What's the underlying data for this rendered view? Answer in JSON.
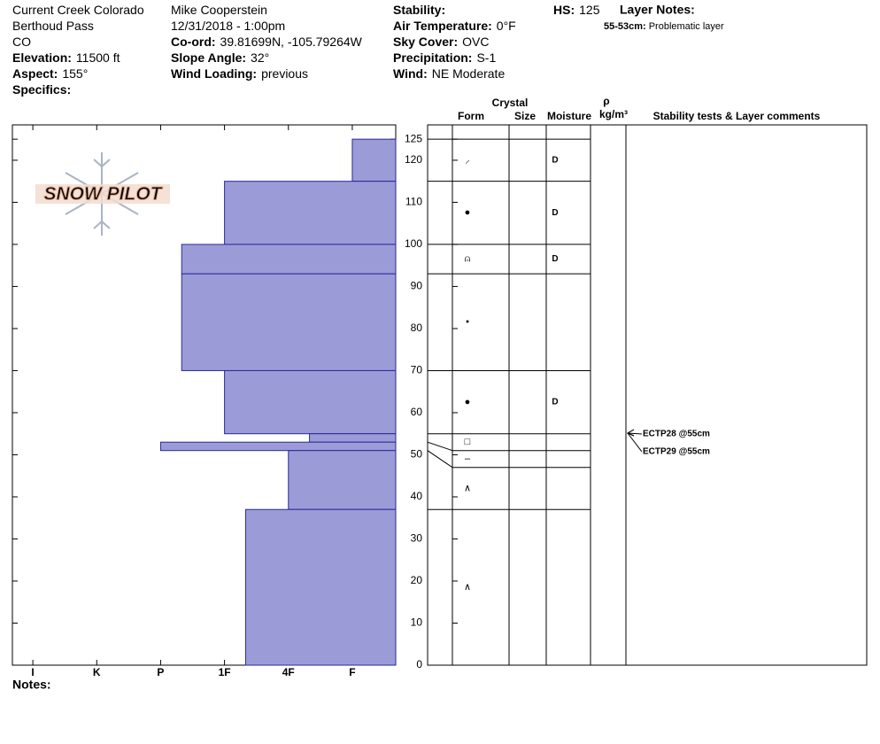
{
  "header": {
    "col1": [
      {
        "value": "Current Creek Colorado"
      },
      {
        "value": "Berthoud Pass"
      },
      {
        "value": "CO"
      },
      {
        "label": "Elevation:",
        "value": "11500 ft"
      },
      {
        "label": "Aspect:",
        "value": "155°"
      },
      {
        "label": "Specifics:"
      }
    ],
    "col2": [
      {
        "value": "Mike Cooperstein"
      },
      {
        "value": "12/31/2018 - 1:00pm"
      },
      {
        "label": "Co-ord:",
        "value": "39.81699N, -105.79264W"
      },
      {
        "label": "Slope Angle:",
        "value": "32°"
      },
      {
        "label": "Wind Loading:",
        "value": "previous"
      }
    ],
    "col3": [
      {
        "label": "Stability:"
      },
      {
        "label": "Air Temperature:",
        "value": "0°F"
      },
      {
        "label": "Sky Cover:",
        "value": "OVC"
      },
      {
        "label": "Precipitation:",
        "value": "S-1"
      },
      {
        "label": "Wind:",
        "value": "NE Moderate"
      }
    ],
    "hs": {
      "label": "HS:",
      "value": "125"
    },
    "layer_notes": {
      "title": "Layer Notes:",
      "items": [
        {
          "label": "55-53cm:",
          "value": "Problematic layer"
        }
      ]
    }
  },
  "logo": "SNOW PILOT",
  "columns": {
    "crystal": "Crystal",
    "form": "Form",
    "size": "Size",
    "moisture": "Moisture",
    "density_symbol": "ρ",
    "density_unit": "kg/m³",
    "comments": "Stability tests & Layer comments"
  },
  "notes": "Notes:",
  "chart_data": {
    "type": "hardness-profile",
    "color": "#9b9bd7",
    "edge_color": "#2a2a9a",
    "ylim": [
      0,
      128.4
    ],
    "yticks": [
      0,
      10,
      20,
      30,
      40,
      50,
      60,
      70,
      80,
      90,
      100,
      110,
      120,
      125
    ],
    "xlim": [
      6.32,
      0.32
    ],
    "xticks": [
      {
        "value": 6,
        "label": "I"
      },
      {
        "value": 5,
        "label": "K"
      },
      {
        "value": 4,
        "label": "P"
      },
      {
        "value": 3,
        "label": "1F"
      },
      {
        "value": 2,
        "label": "4F"
      },
      {
        "value": 1,
        "label": "F"
      }
    ],
    "layers": [
      {
        "top": 125,
        "bottom": 115,
        "hardness": 1,
        "form": "⸝",
        "moisture": "D"
      },
      {
        "top": 115,
        "bottom": 100,
        "hardness": 3,
        "form": "●",
        "moisture": "D"
      },
      {
        "top": 100,
        "bottom": 93,
        "hardness": 3.67,
        "form": "⍝",
        "moisture": "D"
      },
      {
        "top": 93,
        "bottom": 70,
        "hardness": 3.67,
        "form": "•"
      },
      {
        "top": 70,
        "bottom": 55,
        "hardness": 3,
        "form": "●",
        "moisture": "D"
      },
      {
        "top": 55,
        "bottom": 53,
        "hardness": 1.67,
        "form": "□"
      },
      {
        "top": 53,
        "bottom": 51,
        "hardness": 4,
        "form": "–"
      },
      {
        "top": 51,
        "bottom": 37,
        "hardness": 2,
        "form": "∧"
      },
      {
        "top": 37,
        "bottom": 0,
        "hardness": 2.67,
        "form": "∧"
      }
    ],
    "tests": [
      "ECTP28 @55cm",
      "ECTP29 @55cm"
    ]
  }
}
